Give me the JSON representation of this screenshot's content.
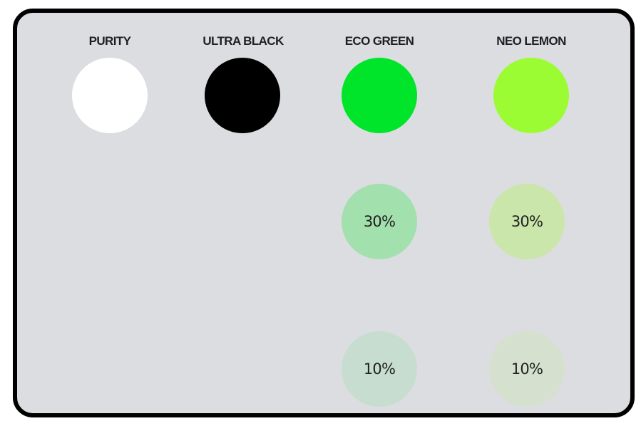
{
  "colors": [
    {
      "name": "PURITY",
      "hex": "#ffffff",
      "tints": []
    },
    {
      "name": "ULTRA BLACK",
      "hex": "#000000",
      "tints": []
    },
    {
      "name": "ECO GREEN",
      "hex": "#00e52a",
      "tints": [
        {
          "label": "30%",
          "hex": "#a2e0ad"
        },
        {
          "label": "10%",
          "hex": "#c7ddcf"
        }
      ]
    },
    {
      "name": "NEO LEMON",
      "hex": "#9cfc33",
      "tints": [
        {
          "label": "30%",
          "hex": "#cae6ab"
        },
        {
          "label": "10%",
          "hex": "#d5e0cf"
        }
      ]
    }
  ]
}
